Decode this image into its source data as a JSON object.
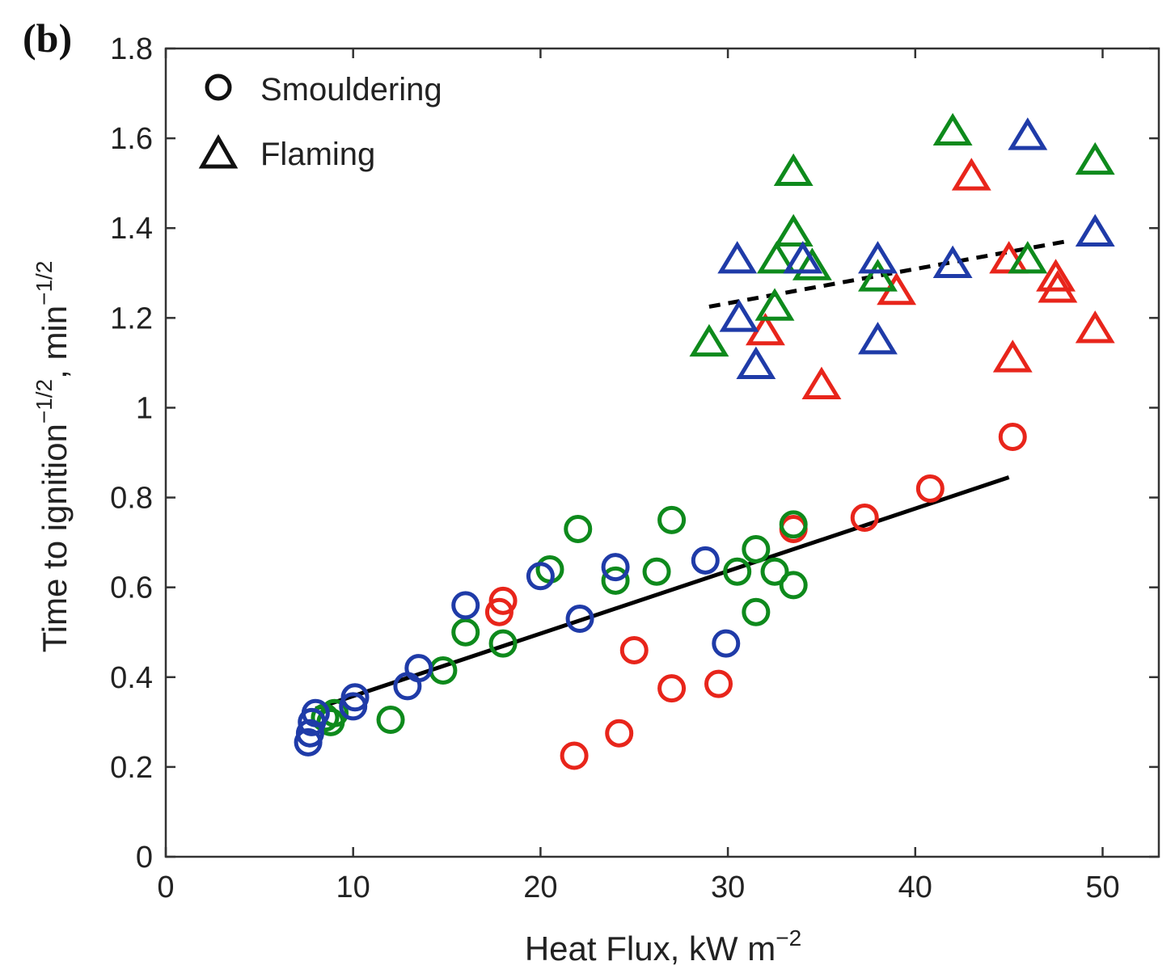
{
  "panel_label": "(b)",
  "colors": {
    "red": "#e8251b",
    "green": "#0e8a1c",
    "blue": "#1f3ba8",
    "axis": "#333333",
    "fit": "#000000"
  },
  "chart_data": {
    "type": "scatter",
    "title": "",
    "xlabel": "Heat Flux, kW m",
    "xlabel_sup": "−2",
    "ylabel": "Time to ignition",
    "ylabel_sup": "−1/2",
    "ylabel_suffix": ", min",
    "ylabel_suffix_sup": "−1/2",
    "xlim": [
      0,
      53
    ],
    "ylim": [
      0,
      1.8
    ],
    "xticks": [
      0,
      10,
      20,
      30,
      40,
      50
    ],
    "yticks": [
      0,
      0.2,
      0.4,
      0.6,
      0.8,
      1,
      1.2,
      1.4,
      1.6,
      1.8
    ],
    "ytick_labels": [
      "0",
      "0.2",
      "0.4",
      "0.6",
      "0.8",
      "1",
      "1.2",
      "1.4",
      "1.6",
      "1.8"
    ],
    "grid": false,
    "legend": {
      "position": "top-left",
      "entries": [
        {
          "marker": "circle",
          "label": "Smouldering"
        },
        {
          "marker": "triangle",
          "label": "Flaming"
        }
      ]
    },
    "fit_lines": [
      {
        "name": "smouldering-fit",
        "style": "solid",
        "x": [
          8,
          45
        ],
        "y": [
          0.33,
          0.845
        ]
      },
      {
        "name": "flaming-fit",
        "style": "dashed",
        "x": [
          29,
          48
        ],
        "y": [
          1.225,
          1.37
        ]
      }
    ],
    "series": [
      {
        "name": "smouldering-red",
        "marker": "circle",
        "color": "red",
        "x": [
          17.8,
          18.0,
          21.8,
          24.2,
          25.0,
          27.0,
          29.5,
          33.5,
          37.3,
          40.8,
          45.2
        ],
        "y": [
          0.545,
          0.57,
          0.225,
          0.275,
          0.46,
          0.375,
          0.385,
          0.73,
          0.755,
          0.82,
          0.935
        ]
      },
      {
        "name": "smouldering-green",
        "marker": "circle",
        "color": "green",
        "x": [
          8.5,
          8.8,
          9.0,
          12.0,
          14.8,
          16.0,
          18.0,
          20.5,
          22.0,
          24.0,
          26.2,
          27.0,
          30.5,
          31.5,
          31.5,
          32.5,
          33.5,
          33.5
        ],
        "y": [
          0.31,
          0.3,
          0.32,
          0.305,
          0.415,
          0.5,
          0.475,
          0.64,
          0.73,
          0.615,
          0.635,
          0.75,
          0.635,
          0.685,
          0.545,
          0.635,
          0.605,
          0.74
        ]
      },
      {
        "name": "smouldering-blue",
        "marker": "circle",
        "color": "blue",
        "x": [
          7.6,
          7.7,
          7.8,
          8.0,
          10.0,
          10.1,
          12.9,
          13.5,
          16.0,
          20.0,
          22.1,
          24.0,
          28.8,
          29.9
        ],
        "y": [
          0.255,
          0.275,
          0.3,
          0.32,
          0.335,
          0.355,
          0.38,
          0.42,
          0.56,
          0.625,
          0.53,
          0.645,
          0.66,
          0.475
        ]
      },
      {
        "name": "flaming-red",
        "marker": "triangle",
        "color": "red",
        "x": [
          32.0,
          35.0,
          39.0,
          43.0,
          45.0,
          45.2,
          47.5,
          47.6,
          49.6
        ],
        "y": [
          1.165,
          1.045,
          1.255,
          1.51,
          1.325,
          1.105,
          1.285,
          1.26,
          1.17
        ]
      },
      {
        "name": "flaming-green",
        "marker": "triangle",
        "color": "green",
        "x": [
          29.0,
          32.5,
          32.6,
          33.5,
          33.5,
          34.5,
          38.0,
          42.0,
          46.0,
          49.6
        ],
        "y": [
          1.14,
          1.22,
          1.325,
          1.52,
          1.385,
          1.31,
          1.285,
          1.61,
          1.325,
          1.545
        ]
      },
      {
        "name": "flaming-blue",
        "marker": "triangle",
        "color": "blue",
        "x": [
          30.5,
          30.6,
          31.5,
          34.0,
          38.0,
          38.0,
          42.0,
          46.0,
          49.6
        ],
        "y": [
          1.325,
          1.195,
          1.09,
          1.325,
          1.325,
          1.145,
          1.315,
          1.6,
          1.385
        ]
      }
    ]
  }
}
